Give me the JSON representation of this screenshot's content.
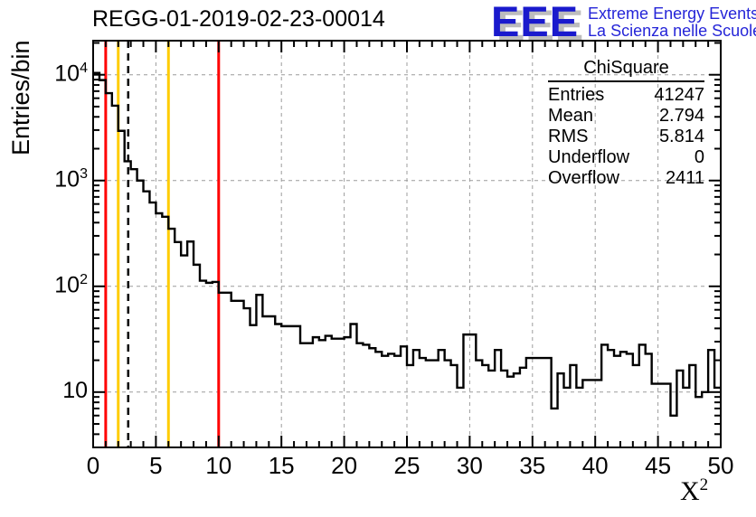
{
  "title": "REGG-01-2019-02-23-00014",
  "logo": {
    "acronym": "EEE",
    "line1": "Extreme Energy Events",
    "line2": "La Scienza nelle Scuole",
    "blue": "#1a1acd",
    "shadow_gray": "#bdbdbd"
  },
  "stats": {
    "title": "ChiSquare",
    "rows": [
      {
        "label": "Entries",
        "value": "41247"
      },
      {
        "label": "Mean",
        "value": "2.794"
      },
      {
        "label": "RMS",
        "value": "5.814"
      },
      {
        "label": "Underflow",
        "value": "0"
      },
      {
        "label": "Overflow",
        "value": "2411"
      }
    ]
  },
  "chart_data": {
    "type": "line",
    "subtype": "step-histogram",
    "title": "REGG-01-2019-02-23-00014",
    "xlabel_base": "X",
    "xlabel_exp": "2",
    "ylabel": "Entries/bin",
    "x_range": [
      0,
      50
    ],
    "y_range": [
      3.0,
      21000
    ],
    "y_scale": "log",
    "line_color": "#000000",
    "grid": {
      "color": "#9c9c9c",
      "dash": "4,4",
      "x_lines": [
        5,
        10,
        15,
        20,
        25,
        30,
        35,
        40,
        45
      ],
      "y_lines": [
        10,
        100,
        1000,
        10000
      ]
    },
    "x_major_ticks": [
      0,
      5,
      10,
      15,
      20,
      25,
      30,
      35,
      40,
      45,
      50
    ],
    "x_minor_step": 1,
    "x_tick_labels": [
      "0",
      "5",
      "10",
      "15",
      "20",
      "25",
      "30",
      "35",
      "40",
      "45",
      "50"
    ],
    "y_tick_labels": [
      {
        "value": 10,
        "base": "10",
        "exp": ""
      },
      {
        "value": 100,
        "base": "10",
        "exp": "2"
      },
      {
        "value": 1000,
        "base": "10",
        "exp": "3"
      },
      {
        "value": 10000,
        "base": "10",
        "exp": "4"
      }
    ],
    "bin_start": 0,
    "bin_width": 0.5,
    "values": [
      10400,
      8900,
      6700,
      5100,
      2950,
      1520,
      1280,
      1000,
      790,
      620,
      490,
      455,
      350,
      262,
      196,
      265,
      160,
      113,
      108,
      110,
      87,
      87,
      73,
      73,
      62,
      43,
      83,
      52,
      52,
      44,
      42,
      42,
      42,
      29,
      29,
      33,
      31,
      34,
      32,
      32,
      33,
      44,
      29,
      28,
      26,
      24,
      22,
      23,
      22,
      27,
      18,
      25,
      21,
      20,
      20,
      25,
      20,
      18,
      11,
      35,
      35,
      20,
      18,
      16,
      25,
      16,
      14,
      15,
      17,
      21,
      21,
      21,
      21,
      7,
      15,
      11,
      18,
      11,
      13,
      13,
      13,
      28,
      25,
      22,
      24,
      23,
      18,
      28,
      23,
      12,
      12,
      12,
      6,
      16,
      11,
      18,
      9,
      10,
      25,
      11
    ],
    "vlines": [
      {
        "x": 1,
        "color": "#ff0000",
        "style": "solid",
        "name": "red-marker-line-1"
      },
      {
        "x": 2,
        "color": "#ffcc00",
        "style": "solid",
        "name": "yellow-marker-line-2"
      },
      {
        "x": 2.794,
        "color": "#000000",
        "style": "dashed",
        "name": "mean-dashed-line"
      },
      {
        "x": 6,
        "color": "#ffcc00",
        "style": "solid",
        "name": "yellow-marker-line-6"
      },
      {
        "x": 10,
        "color": "#ff0000",
        "style": "solid",
        "name": "red-marker-line-10"
      }
    ]
  }
}
